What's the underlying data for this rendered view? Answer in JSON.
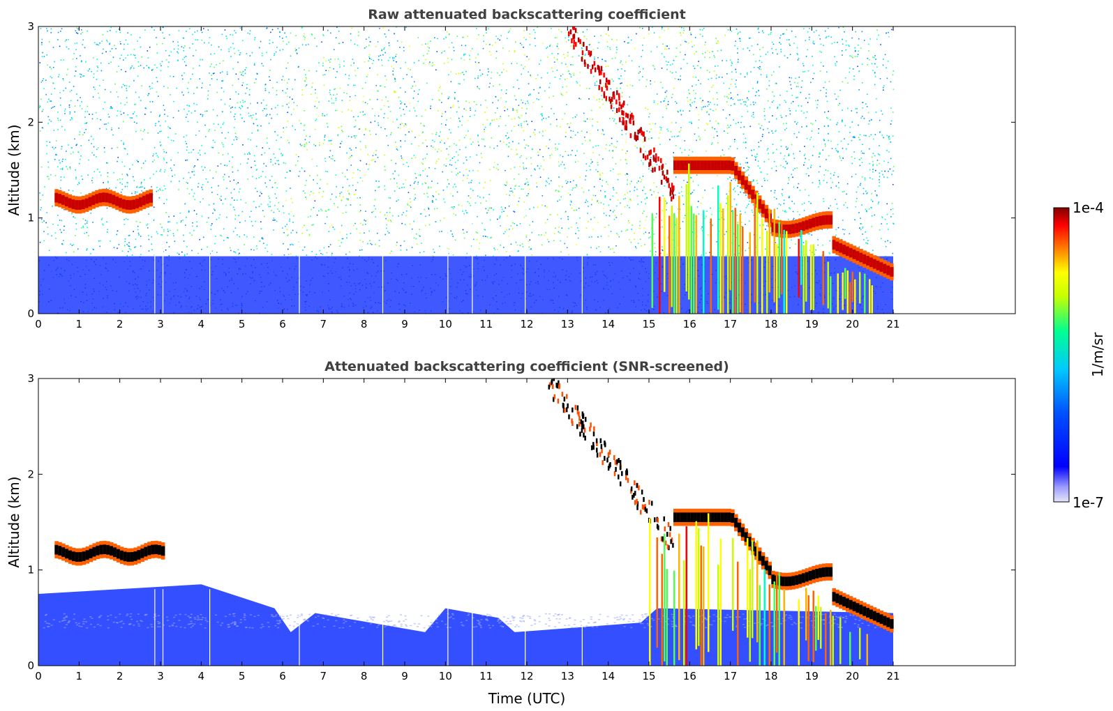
{
  "chart_data": [
    {
      "type": "heatmap",
      "title": "Raw attenuated backscattering coefficient",
      "xlabel": "",
      "ylabel": "Altitude (km)",
      "xlim": [
        0,
        24
      ],
      "ylim": [
        0,
        3
      ],
      "x_ticks": [
        0,
        1,
        2,
        3,
        4,
        5,
        6,
        7,
        8,
        9,
        10,
        11,
        12,
        13,
        14,
        15,
        16,
        17,
        18,
        19,
        20,
        21
      ],
      "y_ticks": [
        0,
        1,
        2,
        3
      ],
      "data_end_time": 21,
      "features": [
        {
          "name": "boundary-layer",
          "x": [
            0,
            21
          ],
          "y": [
            0,
            0.6
          ],
          "level": "low"
        },
        {
          "name": "low-cloud",
          "x": [
            0.4,
            2.8
          ],
          "y": [
            1.05,
            1.3
          ],
          "level": "high"
        },
        {
          "name": "cirrus-fall-streak",
          "x": [
            13,
            15.6
          ],
          "y": [
            1.3,
            3.0
          ],
          "level": "high"
        },
        {
          "name": "cloud-layer",
          "x": [
            15.6,
            19.5
          ],
          "y": [
            0.85,
            1.65
          ],
          "level": "high"
        },
        {
          "name": "descending-cloud",
          "x": [
            19.5,
            21
          ],
          "y": [
            0.35,
            0.75
          ],
          "level": "high"
        },
        {
          "name": "precipitation",
          "x": [
            15,
            20.5
          ],
          "y": [
            0,
            1.6
          ],
          "level": "medium"
        }
      ]
    },
    {
      "type": "heatmap",
      "title": "Attenuated backscattering coefficient (SNR-screened)",
      "xlabel": "Time (UTC)",
      "ylabel": "Altitude (km)",
      "xlim": [
        0,
        24
      ],
      "ylim": [
        0,
        3
      ],
      "x_ticks": [
        0,
        1,
        2,
        3,
        4,
        5,
        6,
        7,
        8,
        9,
        10,
        11,
        12,
        13,
        14,
        15,
        16,
        17,
        18,
        19,
        20,
        21
      ],
      "y_ticks": [
        0,
        1,
        2,
        3
      ],
      "data_end_time": 21,
      "features": [
        {
          "name": "boundary-layer",
          "x": [
            0,
            21
          ],
          "y": [
            0,
            0.75
          ],
          "level": "low"
        },
        {
          "name": "low-cloud",
          "x": [
            0.4,
            3.1
          ],
          "y": [
            1.05,
            1.3
          ],
          "level": "saturated"
        },
        {
          "name": "cirrus-fall-streak",
          "x": [
            12.5,
            15.6
          ],
          "y": [
            1.3,
            3.0
          ],
          "level": "saturated"
        },
        {
          "name": "cloud-layer",
          "x": [
            15.6,
            19.5
          ],
          "y": [
            0.85,
            1.65
          ],
          "level": "saturated"
        },
        {
          "name": "descending-cloud",
          "x": [
            19.5,
            21
          ],
          "y": [
            0.35,
            0.75
          ],
          "level": "saturated"
        },
        {
          "name": "precipitation",
          "x": [
            15,
            20.5
          ],
          "y": [
            0,
            1.6
          ],
          "level": "medium"
        }
      ]
    }
  ],
  "colorbar": {
    "unit_label": "1/m/sr",
    "max_label": "1e-4",
    "min_label": "1e-7",
    "range": [
      1e-07,
      0.0001
    ],
    "scale": "log",
    "colormap": [
      "#e6e6fa",
      "#0000ff",
      "#00c8ff",
      "#00ff80",
      "#ffff00",
      "#ff8000",
      "#ff0000",
      "#800000"
    ]
  }
}
